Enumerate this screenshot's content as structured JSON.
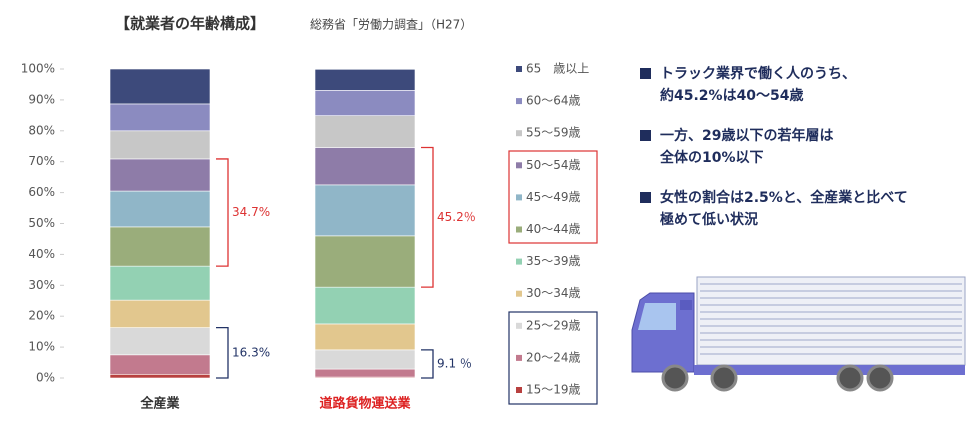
{
  "chart_data": {
    "type": "stacked-bar",
    "title": "【就業者の年齢構成】",
    "subtitle": "総務省「労働力調査」（H27）",
    "categories": [
      "全産業",
      "道路貨物運送業"
    ],
    "series": [
      {
        "name": "15～19歳",
        "color": "#b8403f",
        "values": [
          1.2,
          0.3
        ]
      },
      {
        "name": "20～24歳",
        "color": "#c27a8e",
        "values": [
          6.3,
          2.6
        ]
      },
      {
        "name": "25～29歳",
        "color": "#d9d9d9",
        "values": [
          8.8,
          6.2
        ]
      },
      {
        "name": "30～34歳",
        "color": "#e2c78e",
        "values": [
          8.9,
          8.4
        ]
      },
      {
        "name": "35～39歳",
        "color": "#93d1b3",
        "values": [
          11.0,
          11.9
        ]
      },
      {
        "name": "40～44歳",
        "color": "#9aad7b",
        "values": [
          12.7,
          16.6
        ]
      },
      {
        "name": "45～49歳",
        "color": "#90b6c8",
        "values": [
          11.6,
          16.5
        ]
      },
      {
        "name": "50～54歳",
        "color": "#8e7ca8",
        "values": [
          10.4,
          12.1
        ]
      },
      {
        "name": "55～59歳",
        "color": "#c7c7c7",
        "values": [
          9.1,
          10.3
        ]
      },
      {
        "name": "60～64歳",
        "color": "#8b8bc0",
        "values": [
          8.7,
          8.2
        ]
      },
      {
        "name": "65　歳以上",
        "color": "#3d4a7b",
        "values": [
          11.3,
          6.8
        ]
      }
    ],
    "ylim": [
      0,
      100
    ],
    "yticks": [
      {
        "value": 0,
        "label": "0%"
      },
      {
        "value": 10,
        "label": "10%"
      },
      {
        "value": 20,
        "label": "20%"
      },
      {
        "value": 30,
        "label": "30%"
      },
      {
        "value": 40,
        "label": "40%"
      },
      {
        "value": 50,
        "label": "50%"
      },
      {
        "value": 60,
        "label": "60%"
      },
      {
        "value": 70,
        "label": "70%"
      },
      {
        "value": 80,
        "label": "80%"
      },
      {
        "value": 90,
        "label": "90%"
      },
      {
        "value": 100,
        "label": "100%"
      }
    ],
    "grid": false,
    "annotations": [
      "34.7%",
      "16.3%",
      "45.2％",
      "9.1 ％"
    ]
  },
  "notes": [
    [
      "トラック業界で働く人のうち、",
      "約45.2%は40～54歳"
    ],
    [
      "一方、29歳以下の若年層は",
      "全体の10%以下"
    ],
    [
      "女性の割合は2.5%と、全産業と比べて",
      "極めて低い状況"
    ]
  ]
}
